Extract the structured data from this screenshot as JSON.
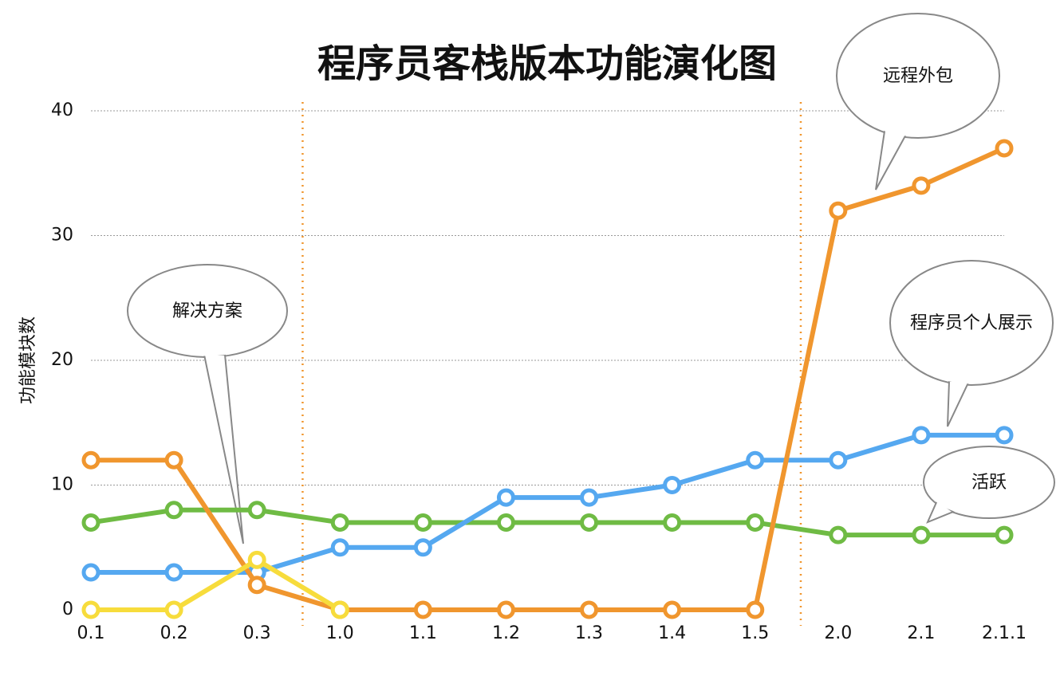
{
  "chart_data": {
    "type": "line",
    "title": "程序员客栈版本功能演化图",
    "y_label": "功能模块数",
    "categories": [
      "0.1",
      "0.2",
      "0.3",
      "1.0",
      "1.1",
      "1.2",
      "1.3",
      "1.4",
      "1.5",
      "2.0",
      "2.1",
      "2.1.1"
    ],
    "series": [
      {
        "color": "#6fbb44",
        "values": [
          7,
          8,
          8,
          7,
          7,
          7,
          7,
          7,
          7,
          6,
          6,
          6
        ]
      },
      {
        "color": "#55a8f0",
        "values": [
          3,
          3,
          3,
          5,
          5,
          9,
          9,
          10,
          12,
          12,
          14,
          14
        ]
      },
      {
        "color": "#f0962e",
        "values": [
          12,
          12,
          2,
          0,
          0,
          0,
          0,
          0,
          0,
          32,
          34,
          37
        ]
      },
      {
        "color": "#f7dc3c",
        "values": [
          0,
          0,
          4,
          0,
          null,
          null,
          null,
          null,
          null,
          null,
          null,
          null
        ]
      }
    ],
    "ylim": [
      0,
      40
    ],
    "yticks": [
      0,
      10,
      20,
      30,
      40
    ],
    "grid": true,
    "annotations": [
      "远程外包",
      "解决方案",
      "程序员个人展示",
      "活跃"
    ]
  }
}
